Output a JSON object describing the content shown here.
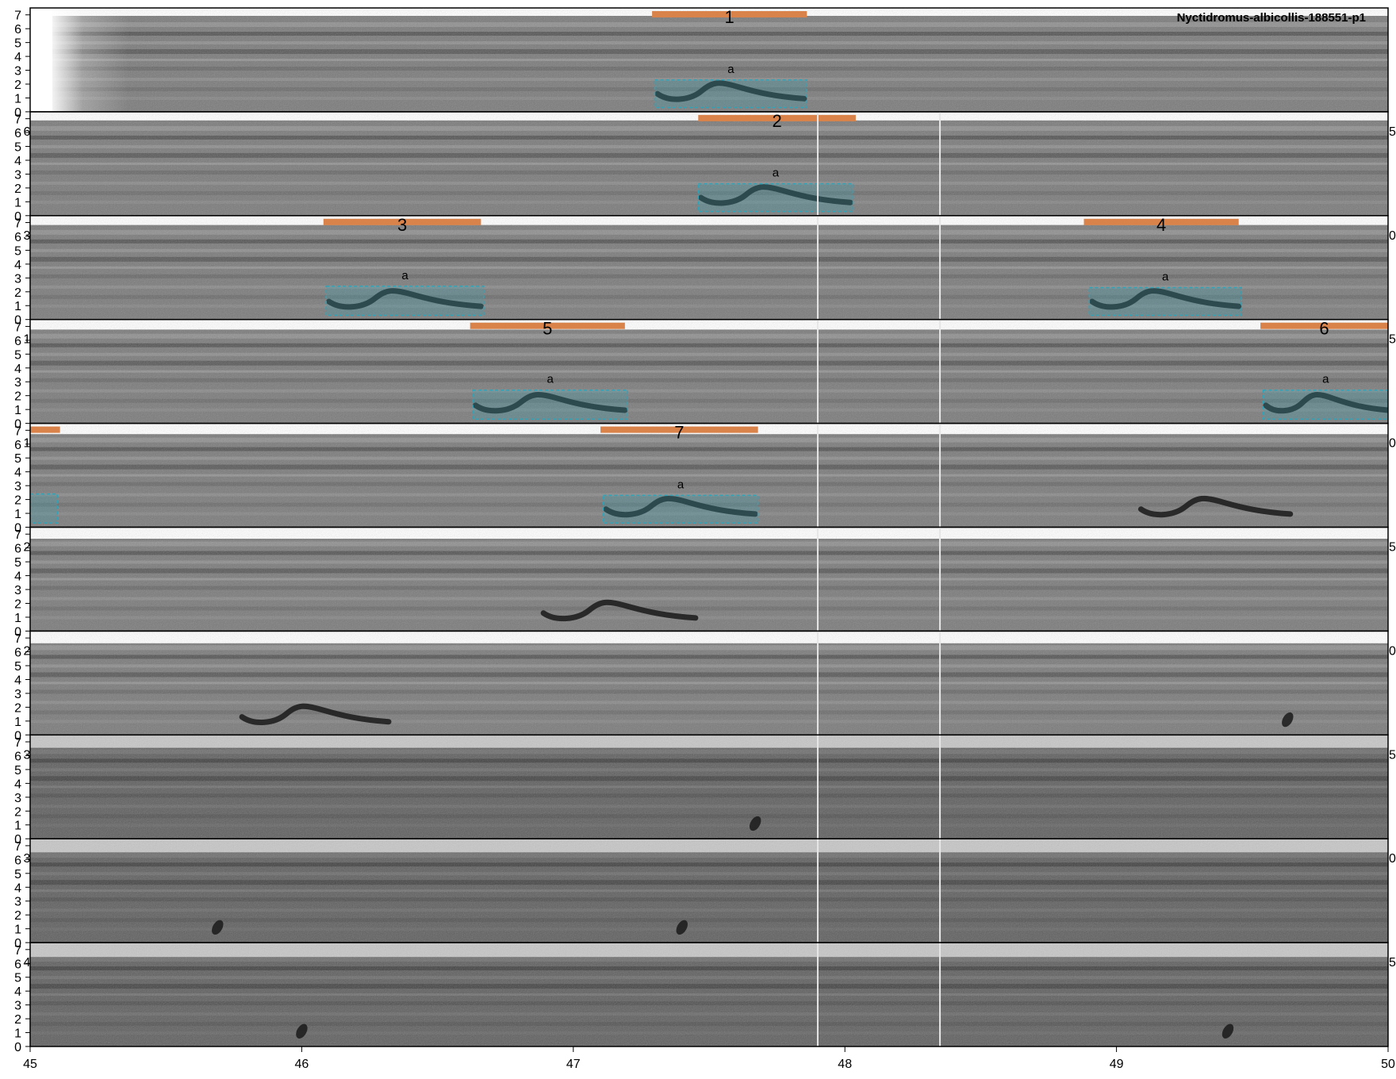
{
  "chart_data": {
    "type": "spectrogram",
    "title": "Nyctidromus-albicollis-188551-p1",
    "x_ticks": [
      "45",
      "46",
      "47",
      "48",
      "49",
      "50"
    ],
    "y_ticks": [
      "0",
      "1",
      "2",
      "3",
      "4",
      "5",
      "6",
      "7"
    ],
    "xlim": [
      45,
      50
    ],
    "ylim": [
      0,
      7.5
    ],
    "row_count": 10,
    "colors": {
      "segment_bar": "#d9834a",
      "box": "#2fa3b8",
      "box_fill": "#3aa0b4",
      "background": "#777777",
      "frame": "#000000"
    },
    "segments": [
      {
        "label": "1",
        "row": 0,
        "x_start": 47.29,
        "x_end": 47.86
      },
      {
        "label": "2",
        "row": 1,
        "x_start": 47.46,
        "x_end": 48.04
      },
      {
        "label": "3",
        "row": 2,
        "x_start": 46.08,
        "x_end": 46.66
      },
      {
        "label": "4",
        "row": 2,
        "x_start": 48.88,
        "x_end": 49.45
      },
      {
        "label": "5",
        "row": 3,
        "x_start": 46.62,
        "x_end": 47.19
      },
      {
        "label": "6",
        "row": 3,
        "x_start": 49.53,
        "x_end": 50.0
      },
      {
        "label": "",
        "row": 4,
        "x_start": 45.0,
        "x_end": 45.11
      },
      {
        "label": "7",
        "row": 4,
        "x_start": 47.1,
        "x_end": 47.68
      }
    ],
    "boxes": [
      {
        "label": "a",
        "row": 0,
        "x_start": 47.3,
        "x_end": 47.86,
        "f_low": 0.3,
        "f_high": 2.3
      },
      {
        "label": "a",
        "row": 1,
        "x_start": 47.46,
        "x_end": 48.03,
        "f_low": 0.3,
        "f_high": 2.3
      },
      {
        "label": "a",
        "row": 2,
        "x_start": 46.09,
        "x_end": 46.67,
        "f_low": 0.3,
        "f_high": 2.4
      },
      {
        "label": "a",
        "row": 2,
        "x_start": 48.9,
        "x_end": 49.46,
        "f_low": 0.3,
        "f_high": 2.3
      },
      {
        "label": "a",
        "row": 3,
        "x_start": 46.63,
        "x_end": 47.2,
        "f_low": 0.3,
        "f_high": 2.4
      },
      {
        "label": "a",
        "row": 3,
        "x_start": 49.54,
        "x_end": 50.0,
        "f_low": 0.3,
        "f_high": 2.4
      },
      {
        "label": "",
        "row": 4,
        "x_start": 45.0,
        "x_end": 45.1,
        "f_low": 0.3,
        "f_high": 2.4
      },
      {
        "label": "a",
        "row": 4,
        "x_start": 47.11,
        "x_end": 47.68,
        "f_low": 0.3,
        "f_high": 2.3
      }
    ],
    "calls": [
      {
        "row": 0,
        "x_start": 47.31,
        "x_end": 47.85
      },
      {
        "row": 1,
        "x_start": 47.47,
        "x_end": 48.02
      },
      {
        "row": 2,
        "x_start": 46.1,
        "x_end": 46.66
      },
      {
        "row": 2,
        "x_start": 48.91,
        "x_end": 49.45
      },
      {
        "row": 3,
        "x_start": 46.64,
        "x_end": 47.19
      },
      {
        "row": 3,
        "x_start": 49.55,
        "x_end": 50.0
      },
      {
        "row": 4,
        "x_start": 47.12,
        "x_end": 47.67
      },
      {
        "row": 4,
        "x_start": 49.09,
        "x_end": 49.64
      },
      {
        "row": 5,
        "x_start": 46.89,
        "x_end": 47.45
      },
      {
        "row": 6,
        "x_start": 45.78,
        "x_end": 46.32
      }
    ],
    "clicks": [
      {
        "row": 6,
        "x": 49.63
      },
      {
        "row": 7,
        "x": 47.67
      },
      {
        "row": 8,
        "x": 45.69
      },
      {
        "row": 8,
        "x": 47.4
      },
      {
        "row": 9,
        "x": 46.0
      },
      {
        "row": 9,
        "x": 49.41
      }
    ],
    "right_edge_labels": [
      "",
      "5",
      "0",
      "5",
      "0",
      "5",
      "0",
      "5",
      "0",
      "5"
    ],
    "left_edge_labels": [
      "",
      "6",
      "3",
      "1",
      "1",
      "2",
      "2",
      "3",
      "3",
      "4"
    ],
    "vertical_lines_x": [
      47.9,
      48.35
    ]
  }
}
